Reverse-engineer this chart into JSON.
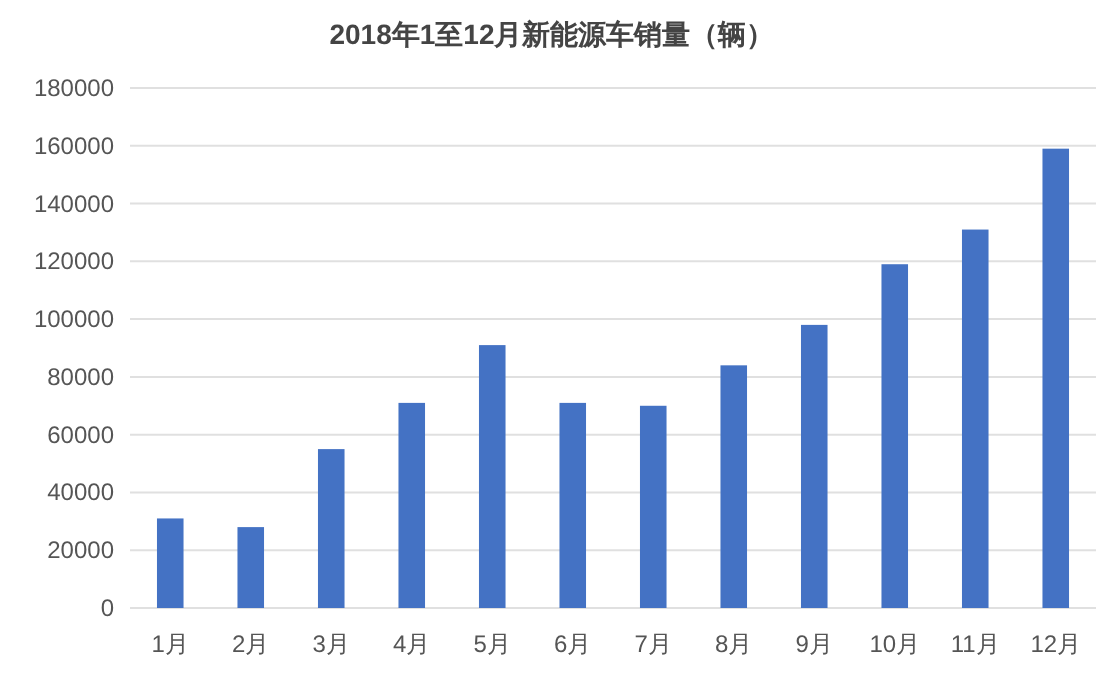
{
  "chart_data": {
    "type": "bar",
    "title": "2018年1至12月新能源车销量（辆）",
    "categories": [
      "1月",
      "2月",
      "3月",
      "4月",
      "5月",
      "6月",
      "7月",
      "8月",
      "9月",
      "10月",
      "11月",
      "12月"
    ],
    "values": [
      31000,
      28000,
      55000,
      71000,
      91000,
      71000,
      70000,
      84000,
      98000,
      119000,
      131000,
      159000
    ],
    "color": "#4472c4",
    "ylim": [
      0,
      180000
    ],
    "yticks": [
      0,
      20000,
      40000,
      60000,
      80000,
      100000,
      120000,
      140000,
      160000,
      180000
    ],
    "grid": "y"
  }
}
